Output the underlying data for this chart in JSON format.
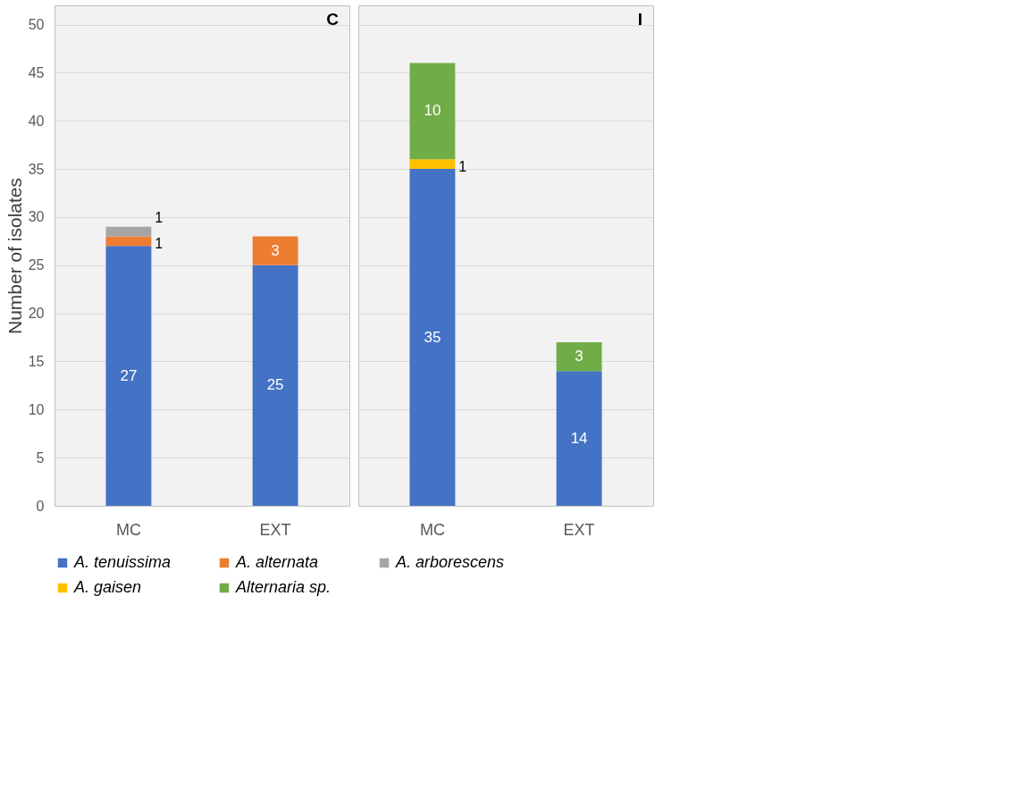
{
  "chart_data": [
    {
      "type": "bar",
      "title": "C",
      "stacked": true,
      "categories": [
        "MC",
        "EXT"
      ],
      "ylabel": "Number of isolates",
      "ylim": [
        0,
        52
      ],
      "yticks": [
        0,
        5,
        10,
        15,
        20,
        25,
        30,
        35,
        40,
        45,
        50
      ],
      "grid": "y",
      "legend": "bottom",
      "data_labels": true,
      "series": [
        {
          "name": "A. tenuissima",
          "color": "#4472c4",
          "values": [
            27,
            25
          ]
        },
        {
          "name": "A. alternata",
          "color": "#ed7d31",
          "values": [
            1,
            3
          ]
        },
        {
          "name": "A. arborescens",
          "color": "#a5a5a5",
          "values": [
            1,
            null
          ]
        }
      ]
    },
    {
      "type": "bar",
      "title": "I",
      "stacked": true,
      "categories": [
        "MC",
        "EXT"
      ],
      "ylim": [
        0,
        52
      ],
      "yticks": [
        0,
        5,
        10,
        15,
        20,
        25,
        30,
        35,
        40,
        45,
        50
      ],
      "grid": "y",
      "legend": "bottom",
      "data_labels": true,
      "tick_labels": "x",
      "series": [
        {
          "name": "A. tenuissima",
          "color": "#4472c4",
          "values": [
            35,
            14
          ]
        },
        {
          "name": "A. gaisen",
          "color": "#ffc000",
          "values": [
            1,
            null
          ]
        },
        {
          "name": "Alternaria sp.",
          "color": "#70ad47",
          "values": [
            10,
            3
          ]
        }
      ]
    }
  ]
}
